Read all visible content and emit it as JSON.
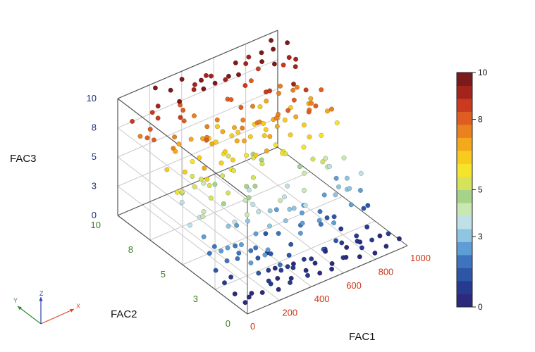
{
  "chart_data": {
    "type": "scatter",
    "dimensions": 3,
    "axes": {
      "x": {
        "label": "FAC1",
        "range": [
          0,
          1000
        ],
        "ticks": [
          "0",
          "200",
          "400",
          "600",
          "800",
          "1000"
        ],
        "color": "#cc3311"
      },
      "y": {
        "label": "FAC2",
        "range": [
          0,
          10
        ],
        "ticks": [
          "0",
          "3",
          "5",
          "8",
          "10"
        ],
        "color": "#3a7d1e"
      },
      "z": {
        "label": "FAC3",
        "range": [
          0,
          10
        ],
        "ticks": [
          "0",
          "3",
          "5",
          "8",
          "10"
        ],
        "color": "#1f2f7a"
      }
    },
    "grid": true,
    "colorbar": {
      "min": 0,
      "max": 10,
      "ticks": [
        "0",
        "3",
        "5",
        "8",
        "10"
      ],
      "location": "right"
    },
    "colormap": [
      "#2b2a7c",
      "#263b8f",
      "#2d56a8",
      "#3e74bd",
      "#5e9ed6",
      "#8fc5e0",
      "#bfe0e6",
      "#c9e7b0",
      "#a6d38a",
      "#d6e35a",
      "#f4e42c",
      "#f7cc1e",
      "#f4a81c",
      "#e9821e",
      "#df5d22",
      "#c93a1e",
      "#a4241c",
      "#7c1a1b"
    ],
    "triad": {
      "x": "X",
      "y": "Y",
      "z": "Z"
    },
    "points": [
      [
        29,
        2.8,
        1.2
      ],
      [
        47,
        8.3,
        7.8
      ],
      [
        75,
        2.5,
        2.0
      ],
      [
        84,
        4.4,
        2.4
      ],
      [
        135,
        1.4,
        2.4
      ],
      [
        94,
        3.7,
        2.1
      ],
      [
        152,
        9.2,
        8.6
      ],
      [
        161,
        5.1,
        6.3
      ],
      [
        181,
        2.7,
        2.6
      ],
      [
        212,
        3.6,
        3.6
      ],
      [
        215,
        1.3,
        2.7
      ],
      [
        244,
        2.2,
        1.5
      ],
      [
        256,
        8.4,
        9.6
      ],
      [
        257,
        4.0,
        2.7
      ],
      [
        261,
        6.6,
        4.1
      ],
      [
        285,
        1.0,
        1.7
      ],
      [
        311,
        8.8,
        8.2
      ],
      [
        318,
        3.9,
        2.8
      ],
      [
        327,
        1.9,
        0.4
      ],
      [
        333,
        9.3,
        8.1
      ],
      [
        341,
        4.1,
        4.5
      ],
      [
        353,
        5.6,
        5.6
      ],
      [
        371,
        6.3,
        6.4
      ],
      [
        384,
        7.7,
        6.3
      ],
      [
        390,
        1.6,
        1.4
      ],
      [
        392,
        5.9,
        5.0
      ],
      [
        407,
        8.4,
        9.8
      ],
      [
        413,
        2.7,
        2.2
      ],
      [
        432,
        5.2,
        3.7
      ],
      [
        449,
        9.1,
        9.7
      ],
      [
        450,
        3.8,
        3.0
      ],
      [
        470,
        7.0,
        6.6
      ],
      [
        497,
        1.2,
        0.8
      ],
      [
        503,
        6.6,
        7.4
      ],
      [
        518,
        4.9,
        6.8
      ],
      [
        525,
        7.2,
        6.4
      ],
      [
        535,
        9.4,
        9.3
      ],
      [
        551,
        2.7,
        2.1
      ],
      [
        562,
        6.5,
        4.9
      ],
      [
        580,
        8.6,
        9.7
      ],
      [
        589,
        2.8,
        3.5
      ],
      [
        594,
        5.6,
        7.0
      ],
      [
        620,
        2.1,
        2.6
      ],
      [
        628,
        7.2,
        6.5
      ],
      [
        644,
        3.6,
        2.5
      ],
      [
        654,
        5.3,
        5.6
      ],
      [
        672,
        9.2,
        9.8
      ],
      [
        689,
        6.2,
        6.8
      ],
      [
        703,
        1.4,
        0.8
      ],
      [
        708,
        7.3,
        8.7
      ],
      [
        715,
        5.5,
        6.5
      ],
      [
        728,
        4.6,
        3.9
      ],
      [
        745,
        8.9,
        8.1
      ],
      [
        761,
        2.7,
        1.6
      ],
      [
        766,
        8.0,
        7.0
      ],
      [
        771,
        3.7,
        5.4
      ],
      [
        789,
        6.0,
        7.2
      ],
      [
        805,
        9.1,
        8.6
      ],
      [
        824,
        4.0,
        4.4
      ],
      [
        830,
        5.5,
        7.8
      ],
      [
        838,
        3.3,
        3.2
      ],
      [
        848,
        6.9,
        8.9
      ],
      [
        870,
        8.2,
        7.5
      ],
      [
        885,
        6.4,
        8.6
      ],
      [
        904,
        4.3,
        2.7
      ],
      [
        918,
        7.5,
        7.7
      ],
      [
        929,
        2.5,
        1.5
      ],
      [
        948,
        5.2,
        7.6
      ],
      [
        963,
        7.0,
        6.9
      ],
      [
        979,
        9.0,
        9.9
      ],
      [
        56,
        7.9,
        7.9
      ],
      [
        67,
        2.1,
        1.0
      ],
      [
        86,
        6.1,
        4.7
      ],
      [
        110,
        6.4,
        3.5
      ],
      [
        120,
        7.2,
        7.4
      ],
      [
        145,
        4.6,
        5.2
      ],
      [
        166,
        6.3,
        5.5
      ],
      [
        171,
        9.0,
        9.2
      ],
      [
        189,
        3.8,
        3.2
      ],
      [
        196,
        7.7,
        6.9
      ],
      [
        199,
        3.4,
        1.8
      ],
      [
        228,
        4.3,
        5.4
      ],
      [
        238,
        8.1,
        8.6
      ],
      [
        246,
        2.4,
        2.2
      ],
      [
        266,
        1.7,
        2.5
      ],
      [
        277,
        8.3,
        7.9
      ],
      [
        281,
        3.5,
        3.9
      ],
      [
        291,
        5.6,
        6.5
      ],
      [
        302,
        1.4,
        0.1
      ],
      [
        320,
        7.4,
        6.9
      ],
      [
        336,
        2.6,
        1.1
      ],
      [
        347,
        5.4,
        6.6
      ],
      [
        356,
        8.5,
        7.7
      ],
      [
        361,
        3.6,
        3.6
      ],
      [
        377,
        9.7,
        9.7
      ],
      [
        383,
        4.3,
        3.5
      ],
      [
        403,
        6.8,
        5.6
      ],
      [
        421,
        4.6,
        4.6
      ],
      [
        425,
        9.3,
        9.3
      ],
      [
        442,
        2.1,
        1.6
      ],
      [
        461,
        8.0,
        6.6
      ],
      [
        478,
        1.8,
        2.6
      ],
      [
        486,
        7.0,
        7.2
      ],
      [
        506,
        4.0,
        2.6
      ],
      [
        512,
        9.5,
        9.4
      ],
      [
        523,
        3.2,
        3.2
      ],
      [
        546,
        6.5,
        6.5
      ],
      [
        555,
        4.0,
        3.4
      ],
      [
        571,
        8.3,
        8.0
      ],
      [
        584,
        3.0,
        2.7
      ],
      [
        597,
        6.6,
        7.3
      ],
      [
        606,
        4.4,
        3.7
      ],
      [
        615,
        1.6,
        0.6
      ],
      [
        634,
        8.5,
        9.6
      ],
      [
        647,
        5.8,
        5.8
      ],
      [
        667,
        7.0,
        6.5
      ],
      [
        678,
        1.7,
        2.4
      ],
      [
        692,
        6.3,
        7.4
      ],
      [
        713,
        3.2,
        1.9
      ],
      [
        723,
        7.2,
        8.8
      ],
      [
        741,
        4.8,
        5.9
      ],
      [
        755,
        2.1,
        1.1
      ],
      [
        774,
        7.2,
        6.2
      ],
      [
        781,
        3.7,
        2.5
      ],
      [
        796,
        8.7,
        9.6
      ],
      [
        811,
        1.6,
        0.6
      ],
      [
        816,
        5.7,
        6.6
      ],
      [
        843,
        2.4,
        2.4
      ],
      [
        854,
        7.2,
        6.6
      ],
      [
        867,
        5.0,
        6.0
      ],
      [
        878,
        4.5,
        3.7
      ],
      [
        893,
        7.5,
        7.6
      ],
      [
        910,
        6.3,
        7.4
      ],
      [
        923,
        3.7,
        3.1
      ],
      [
        941,
        7.9,
        9.0
      ],
      [
        955,
        2.5,
        1.6
      ],
      [
        970,
        5.8,
        6.8
      ],
      [
        996,
        6.6,
        7.8
      ],
      [
        15,
        5.6,
        5.6
      ],
      [
        39,
        3.4,
        2.1
      ],
      [
        61,
        5.8,
        5.2
      ],
      [
        98,
        8.7,
        7.9
      ],
      [
        104,
        6.1,
        6.4
      ],
      [
        128,
        3.1,
        2.3
      ],
      [
        138,
        8.6,
        8.7
      ],
      [
        157,
        2.6,
        2.1
      ],
      [
        176,
        5.5,
        6.8
      ],
      [
        205,
        6.1,
        5.2
      ],
      [
        219,
        9.8,
        9.8
      ],
      [
        232,
        7.1,
        5.7
      ],
      [
        251,
        5.6,
        4.9
      ],
      [
        271,
        6.5,
        7.8
      ],
      [
        296,
        3.0,
        2.6
      ],
      [
        306,
        6.9,
        7.5
      ],
      [
        330,
        6.8,
        6.9
      ],
      [
        349,
        1.2,
        1.0
      ],
      [
        367,
        4.6,
        4.9
      ],
      [
        379,
        7.1,
        6.5
      ],
      [
        398,
        3.5,
        1.6
      ],
      [
        417,
        6.6,
        5.5
      ],
      [
        437,
        7.3,
        6.9
      ],
      [
        456,
        5.7,
        6.1
      ],
      [
        466,
        2.8,
        2.9
      ],
      [
        483,
        5.3,
        6.3
      ],
      [
        495,
        8.6,
        9.6
      ],
      [
        530,
        5.4,
        5.2
      ],
      [
        541,
        8.2,
        8.3
      ],
      [
        567,
        5.9,
        4.9
      ],
      [
        576,
        7.6,
        7.9
      ],
      [
        611,
        6.6,
        7.3
      ],
      [
        638,
        3.5,
        3.9
      ],
      [
        659,
        8.3,
        8.7
      ],
      [
        684,
        4.4,
        4.9
      ],
      [
        698,
        6.6,
        7.0
      ],
      [
        736,
        8.1,
        6.6
      ],
      [
        748,
        6.1,
        7.9
      ],
      [
        778,
        6.7,
        6.4
      ],
      [
        801,
        3.1,
        2.9
      ],
      [
        834,
        8.2,
        9.6
      ],
      [
        861,
        4.6,
        4.4
      ],
      [
        897,
        3.2,
        2.8
      ],
      [
        914,
        8.5,
        8.8
      ],
      [
        935,
        6.8,
        6.8
      ],
      [
        958,
        8.6,
        9.1
      ],
      [
        986,
        3.4,
        3.4
      ],
      [
        22,
        4.7,
        3.5
      ],
      [
        32,
        6.6,
        6.6
      ],
      [
        79,
        3.0,
        2.4
      ],
      [
        116,
        2.2,
        2.2
      ],
      [
        149,
        7.4,
        6.8
      ],
      [
        185,
        7.9,
        7.4
      ],
      [
        224,
        2.5,
        2.0
      ],
      [
        264,
        7.6,
        7.0
      ],
      [
        314,
        5.8,
        5.1
      ],
      [
        344,
        4.4,
        4.0
      ],
      [
        395,
        9.0,
        9.3
      ],
      [
        428,
        7.6,
        7.7
      ],
      [
        474,
        6.1,
        6.9
      ],
      [
        509,
        5.8,
        5.5
      ],
      [
        559,
        3.3,
        3.0
      ],
      [
        601,
        6.1,
        6.6
      ],
      [
        641,
        7.5,
        7.7
      ],
      [
        675,
        5.4,
        5.2
      ],
      [
        719,
        6.5,
        7.4
      ],
      [
        758,
        4.3,
        5.2
      ],
      [
        793,
        5.0,
        6.3
      ],
      [
        827,
        6.6,
        7.9
      ],
      [
        873,
        6.0,
        7.3
      ],
      [
        907,
        9.2,
        9.6
      ],
      [
        944,
        4.2,
        4.3
      ],
      [
        975,
        8.3,
        9.1
      ],
      [
        18,
        9.1,
        8.7
      ],
      [
        52,
        8.9,
        7.4
      ],
      [
        91,
        4.8,
        3.7
      ],
      [
        124,
        4.9,
        3.9
      ],
      [
        208,
        4.4,
        4.5
      ],
      [
        242,
        6.7,
        6.3
      ],
      [
        324,
        2.2,
        1.4
      ],
      [
        364,
        7.6,
        7.5
      ],
      [
        410,
        4.6,
        5.4
      ],
      [
        446,
        6.3,
        6.9
      ],
      [
        538,
        2.4,
        2.6
      ],
      [
        592,
        9.0,
        9.0
      ],
      [
        624,
        5.0,
        5.9
      ],
      [
        662,
        2.5,
        1.7
      ],
      [
        733,
        2.9,
        1.5
      ],
      [
        786,
        9.6,
        9.3
      ],
      [
        820,
        7.7,
        7.6
      ],
      [
        858,
        2.9,
        3.2
      ],
      [
        889,
        5.7,
        7.8
      ],
      [
        926,
        9.6,
        9.9
      ],
      [
        990,
        5.3,
        6.1
      ],
      [
        70,
        4.3,
        4.3
      ],
      [
        132,
        5.7,
        5.3
      ],
      [
        192,
        5.3,
        5.4
      ],
      [
        274,
        9.3,
        9.7
      ],
      [
        374,
        2.9,
        2.9
      ],
      [
        489,
        3.5,
        3.9
      ],
      [
        548,
        7.1,
        7.4
      ],
      [
        651,
        6.6,
        6.4
      ],
      [
        752,
        9.4,
        9.1
      ],
      [
        842,
        9.3,
        9.6
      ],
      [
        950,
        3.0,
        2.5
      ],
      [
        11,
        1.9,
        1.0
      ],
      [
        43,
        1.5,
        0.2
      ],
      [
        107,
        1.0,
        0.3
      ],
      [
        142,
        0.6,
        0.5
      ],
      [
        203,
        0.7,
        0.8
      ],
      [
        235,
        0.5,
        0.3
      ],
      [
        299,
        0.4,
        0.6
      ],
      [
        339,
        0.8,
        0.4
      ],
      [
        401,
        0.3,
        0.7
      ],
      [
        439,
        0.9,
        0.4
      ],
      [
        493,
        0.5,
        0.2
      ],
      [
        543,
        0.2,
        0.5
      ],
      [
        586,
        0.7,
        0.3
      ],
      [
        631,
        0.4,
        0.8
      ],
      [
        681,
        0.8,
        0.2
      ],
      [
        726,
        0.3,
        0.4
      ],
      [
        764,
        0.6,
        0.7
      ],
      [
        813,
        0.2,
        0.3
      ],
      [
        851,
        0.9,
        0.6
      ],
      [
        900,
        0.4,
        0.2
      ],
      [
        938,
        0.7,
        0.8
      ],
      [
        973,
        0.3,
        0.5
      ],
      [
        167,
        1.2,
        1.5
      ],
      [
        253,
        1.5,
        1.0
      ],
      [
        359,
        0.9,
        1.1
      ],
      [
        459,
        1.3,
        0.9
      ],
      [
        565,
        1.1,
        1.3
      ],
      [
        667,
        1.4,
        1.2
      ],
      [
        768,
        1.0,
        0.9
      ],
      [
        869,
        1.5,
        1.1
      ],
      [
        27,
        0.5,
        0.4
      ],
      [
        83,
        0.9,
        0.2
      ],
      [
        222,
        1.1,
        0.6
      ],
      [
        316,
        1.3,
        0.8
      ],
      [
        418,
        1.6,
        0.5
      ],
      [
        520,
        1.2,
        0.3
      ],
      [
        617,
        1.6,
        0.4
      ],
      [
        717,
        1.2,
        0.5
      ],
      [
        817,
        1.4,
        0.2
      ],
      [
        917,
        1.1,
        0.4
      ]
    ]
  }
}
